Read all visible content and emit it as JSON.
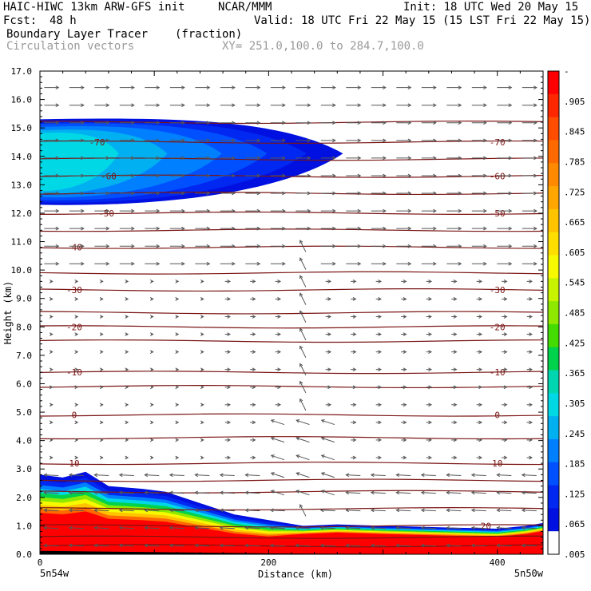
{
  "header": {
    "model": "HAIC-HIWC 13km ARW-GFS init",
    "org": "NCAR/MMM",
    "init": "Init: 18 UTC Wed 20 May 15",
    "fcst_label": "Fcst:",
    "fcst_value": "48 h",
    "valid": "Valid: 18 UTC Fri 22 May 15 (15 LST Fri 22 May 15)",
    "field": "Boundary Layer Tracer",
    "units": "(fraction)",
    "vectors": "Circulation vectors",
    "xy": "XY= 251.0,100.0 to 284.7,100.0"
  },
  "chart_data": {
    "type": "heatmap",
    "xlabel": "Distance (km)",
    "ylabel": "Height (km)",
    "xlim": [
      0,
      440
    ],
    "ylim": [
      0,
      17
    ],
    "x_ticks": [
      0,
      200,
      400
    ],
    "y_ticks": [
      "0.0",
      "1.0",
      "2.0",
      "3.0",
      "4.0",
      "5.0",
      "6.0",
      "7.0",
      "8.0",
      "9.0",
      "10.0",
      "11.0",
      "12.0",
      "13.0",
      "14.0",
      "15.0",
      "16.0",
      "17.0"
    ],
    "x_endpoint_labels": [
      "5n54w",
      "5n50w"
    ],
    "colorbar_labels": [
      "-",
      ".905",
      ".845",
      ".785",
      ".725",
      ".665",
      ".605",
      ".545",
      ".485",
      ".425",
      ".365",
      ".305",
      ".245",
      ".185",
      ".125",
      ".065",
      ".005"
    ],
    "colorbar_colors": [
      "#ff0000",
      "#fd2800",
      "#fe4d00",
      "#ff6a00",
      "#ff8a00",
      "#ffa600",
      "#ffc300",
      "#ffde00",
      "#f7f900",
      "#c8f300",
      "#8ee800",
      "#44dc00",
      "#00d24b",
      "#00d6b0",
      "#00d8e6",
      "#00b0f0",
      "#0080ff",
      "#0050ff",
      "#0028f0",
      "#0010e0",
      "#ffffff"
    ],
    "isotherm_labels_left": [
      {
        "value": "-70",
        "height": 14.5
      },
      {
        "value": "-60",
        "height": 13.3
      },
      {
        "value": "-50",
        "height": 12.0
      },
      {
        "value": "-40",
        "height": 10.8
      },
      {
        "value": "-30",
        "height": 9.3
      },
      {
        "value": "-20",
        "height": 8.0
      },
      {
        "value": "-10",
        "height": 6.4
      },
      {
        "value": "0",
        "height": 4.9
      },
      {
        "value": "10",
        "height": 3.2
      }
    ],
    "isotherm_labels_right": [
      {
        "value": "-70",
        "height": 14.5
      },
      {
        "value": "-60",
        "height": 13.3
      },
      {
        "value": "-50",
        "height": 12.0
      },
      {
        "value": "-30",
        "height": 9.3
      },
      {
        "value": "-20",
        "height": 8.0
      },
      {
        "value": "-10",
        "height": 6.4
      },
      {
        "value": "0",
        "height": 4.9
      },
      {
        "value": "10",
        "height": 3.2
      },
      {
        "value": "20",
        "height": 1.0
      }
    ],
    "isotherm_heights": [
      0.3,
      0.6,
      1.0,
      1.6,
      2.2,
      2.6,
      3.2,
      4.1,
      4.9,
      5.9,
      6.4,
      7.5,
      8.0,
      8.5,
      9.3,
      9.9,
      10.8,
      11.4,
      12.0,
      12.7,
      13.3,
      13.9,
      14.5,
      15.2
    ],
    "upper_plume": {
      "x_end": 265,
      "base": 12.3,
      "top": 15.3
    },
    "boundary_layer": [
      {
        "x": 0,
        "top": 2.8
      },
      {
        "x": 20,
        "top": 2.7
      },
      {
        "x": 40,
        "top": 2.9
      },
      {
        "x": 60,
        "top": 2.4
      },
      {
        "x": 90,
        "top": 2.3
      },
      {
        "x": 110,
        "top": 2.2
      },
      {
        "x": 140,
        "top": 1.8
      },
      {
        "x": 170,
        "top": 1.4
      },
      {
        "x": 200,
        "top": 1.2
      },
      {
        "x": 230,
        "top": 1.0
      },
      {
        "x": 260,
        "top": 1.05
      },
      {
        "x": 300,
        "top": 1.0
      },
      {
        "x": 350,
        "top": 0.95
      },
      {
        "x": 400,
        "top": 0.9
      },
      {
        "x": 425,
        "top": 1.0
      },
      {
        "x": 440,
        "top": 1.1
      }
    ]
  }
}
